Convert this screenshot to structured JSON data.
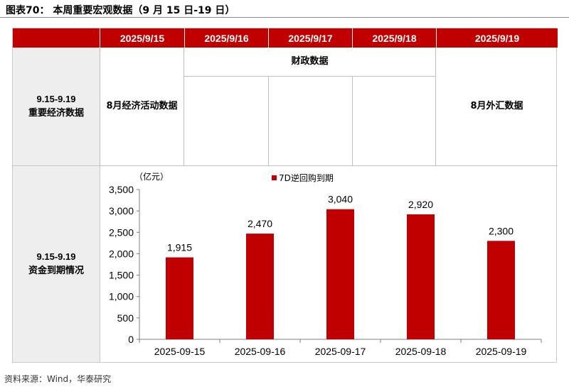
{
  "figure_title": "图表70： 本周重要宏观数据（9 月 15 日-19 日）",
  "header_dates": [
    "2025/9/15",
    "2025/9/16",
    "2025/9/17",
    "2025/9/18",
    "2025/9/19"
  ],
  "row1": {
    "label_en": "9.15-9.19",
    "label_cn": "重要经济数据",
    "col1": "8月经济活动数据",
    "fiscal_span": "财政数据",
    "col5": "8月外汇数据"
  },
  "row2": {
    "label_en": "9.15-9.19",
    "label_cn": "资金到期情况"
  },
  "colors": {
    "accent": "#c00000"
  },
  "chart_data": {
    "type": "bar",
    "unit_label": "（亿元）",
    "legend": "7D逆回购到期",
    "categories": [
      "2025-09-15",
      "2025-09-16",
      "2025-09-17",
      "2025-09-18",
      "2025-09-19"
    ],
    "values": [
      1915,
      2470,
      3040,
      2920,
      2300
    ],
    "data_labels": [
      "1,915",
      "2,470",
      "3,040",
      "2,920",
      "2,300"
    ],
    "ylim": [
      0,
      3500
    ],
    "yticks": [
      0,
      500,
      1000,
      1500,
      2000,
      2500,
      3000,
      3500
    ],
    "ytick_labels": [
      "0",
      "500",
      "1,000",
      "1,500",
      "2,000",
      "2,500",
      "3,000",
      "3,500"
    ],
    "grid": false,
    "legend_position": "top-center"
  },
  "source": "资料来源：Wind，华泰研究"
}
